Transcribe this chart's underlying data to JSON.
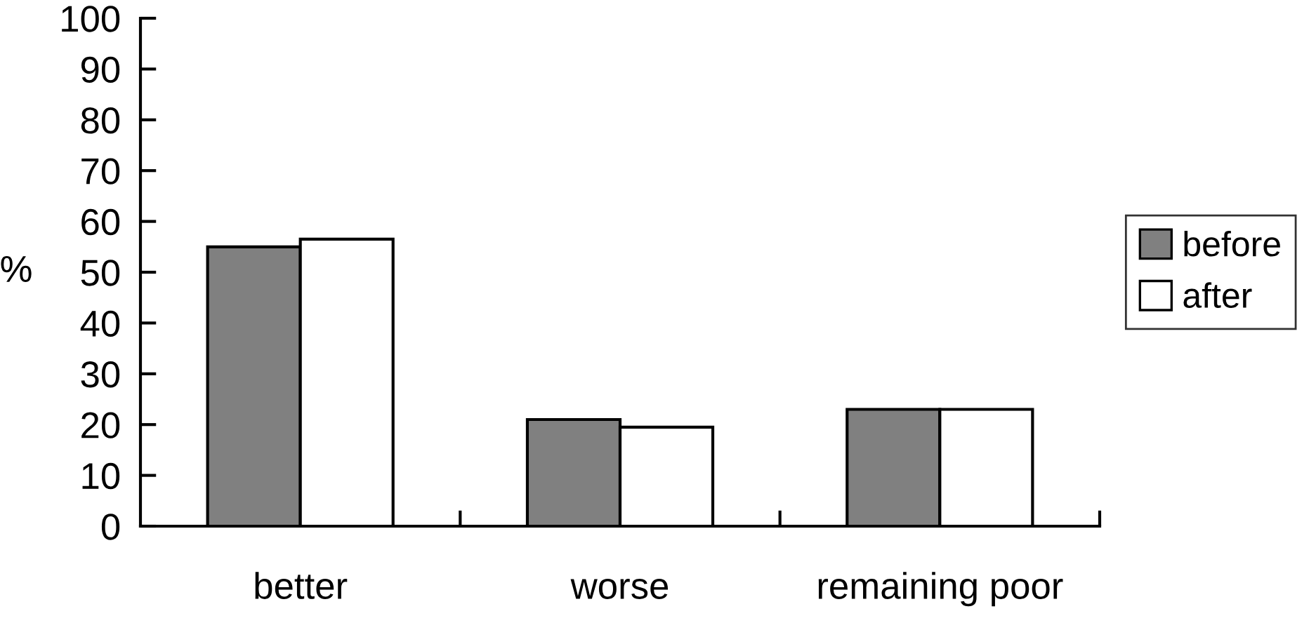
{
  "chart_data": {
    "type": "bar",
    "ylabel": "%",
    "categories": [
      "better",
      "worse",
      "remaining poor"
    ],
    "series": [
      {
        "name": "before",
        "color": "#808080",
        "values": [
          55,
          21,
          23
        ]
      },
      {
        "name": "after",
        "color": "#ffffff",
        "values": [
          56.5,
          19.5,
          23
        ]
      }
    ],
    "ylim": [
      0,
      100
    ],
    "yticks": [
      0,
      10,
      20,
      30,
      40,
      50,
      60,
      70,
      80,
      90,
      100
    ],
    "grid": false,
    "legend": "right"
  }
}
